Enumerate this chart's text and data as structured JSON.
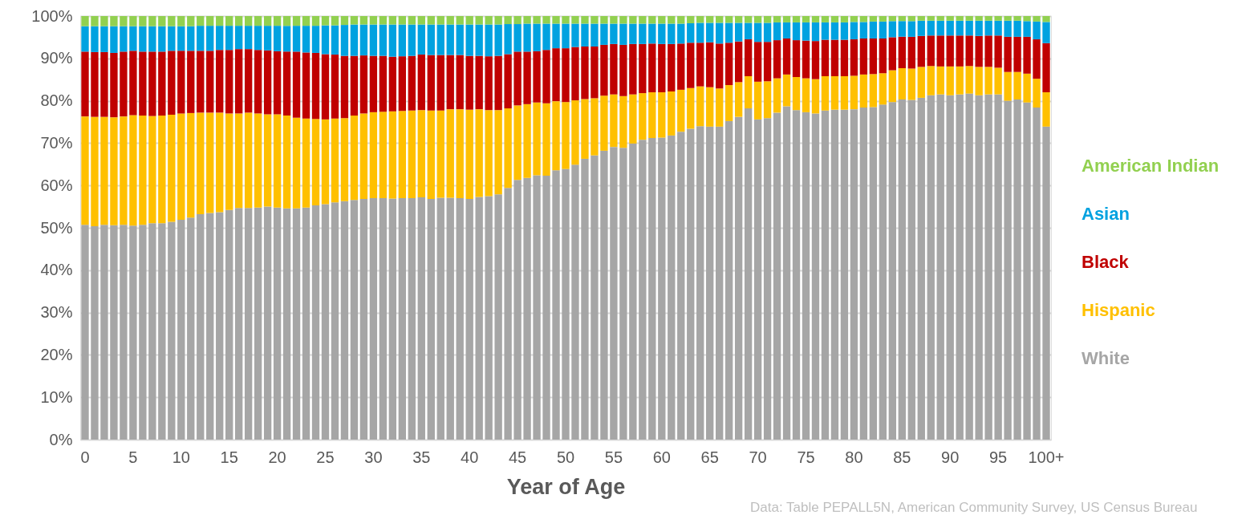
{
  "chart_data": {
    "type": "bar",
    "stacked": true,
    "xlabel": "Year of Age",
    "categories": [
      "0",
      null,
      null,
      null,
      null,
      "5",
      null,
      null,
      null,
      null,
      "10",
      null,
      null,
      null,
      null,
      "15",
      null,
      null,
      null,
      null,
      "20",
      null,
      null,
      null,
      null,
      "25",
      null,
      null,
      null,
      null,
      "30",
      null,
      null,
      null,
      null,
      "35",
      null,
      null,
      null,
      null,
      "40",
      null,
      null,
      null,
      null,
      "45",
      null,
      null,
      null,
      null,
      "50",
      null,
      null,
      null,
      null,
      "55",
      null,
      null,
      null,
      null,
      "60",
      null,
      null,
      null,
      null,
      "65",
      null,
      null,
      null,
      null,
      "70",
      null,
      null,
      null,
      null,
      "75",
      null,
      null,
      null,
      null,
      "80",
      null,
      null,
      null,
      null,
      "85",
      null,
      null,
      null,
      null,
      "90",
      null,
      null,
      null,
      null,
      "95",
      null,
      null,
      null,
      null,
      "100+"
    ],
    "series": [
      {
        "name": "White",
        "color": "#a6a6a6",
        "values": [
          50.7,
          50.4,
          50.7,
          50.6,
          50.7,
          50.5,
          50.7,
          51.1,
          51.1,
          51.4,
          51.9,
          52.4,
          53.2,
          53.5,
          53.7,
          54.2,
          54.7,
          54.7,
          54.8,
          55.0,
          54.8,
          54.6,
          54.6,
          54.8,
          55.3,
          55.6,
          56.0,
          56.3,
          56.6,
          56.8,
          57.0,
          57.0,
          56.9,
          57.0,
          57.0,
          57.2,
          56.8,
          57.1,
          57.1,
          57.0,
          56.8,
          57.3,
          57.5,
          57.9,
          59.4,
          61.3,
          61.8,
          62.4,
          62.3,
          63.6,
          63.9,
          64.9,
          66.3,
          67.1,
          68.2,
          69.1,
          68.9,
          69.9,
          70.8,
          71.2,
          71.3,
          71.8,
          72.7,
          73.4,
          74.0,
          73.9,
          73.9,
          75.2,
          76.2,
          78.2,
          75.6,
          75.9,
          77.2,
          78.7,
          77.8,
          77.3,
          77.0,
          77.7,
          77.9,
          77.9,
          78.0,
          78.4,
          78.5,
          79.1,
          79.7,
          80.3,
          80.2,
          80.7,
          81.3,
          81.5,
          81.3,
          81.5,
          81.7,
          81.3,
          81.5,
          81.5,
          80.0,
          80.3,
          79.6,
          78.4,
          73.9
        ]
      },
      {
        "name": "Hispanic",
        "color": "#ffc000",
        "values": [
          25.6,
          25.8,
          25.5,
          25.5,
          25.6,
          26.1,
          25.8,
          25.3,
          25.4,
          25.3,
          25.1,
          24.7,
          24.0,
          23.7,
          23.5,
          22.8,
          22.3,
          22.5,
          22.2,
          21.8,
          22.0,
          21.9,
          21.4,
          21.0,
          20.4,
          20.0,
          19.8,
          19.6,
          19.9,
          20.2,
          20.3,
          20.4,
          20.6,
          20.6,
          20.7,
          20.6,
          20.9,
          20.6,
          20.9,
          21.0,
          21.1,
          20.7,
          20.3,
          19.9,
          18.8,
          17.6,
          17.4,
          17.2,
          17.1,
          16.3,
          15.8,
          15.2,
          14.1,
          13.5,
          13.0,
          12.4,
          12.2,
          11.6,
          11.0,
          10.8,
          10.7,
          10.4,
          9.9,
          9.6,
          9.4,
          9.3,
          9.0,
          8.5,
          8.2,
          7.6,
          8.9,
          8.7,
          8.1,
          7.5,
          7.8,
          8.0,
          8.1,
          8.1,
          7.9,
          7.9,
          7.9,
          7.8,
          7.8,
          7.4,
          7.5,
          7.4,
          7.4,
          7.3,
          6.9,
          6.6,
          6.8,
          6.6,
          6.5,
          6.7,
          6.5,
          6.3,
          6.8,
          6.5,
          6.8,
          6.8,
          8.1
        ]
      },
      {
        "name": "Black",
        "color": "#c00000",
        "values": [
          15.3,
          15.3,
          15.3,
          15.2,
          15.3,
          15.2,
          15.1,
          15.2,
          15.1,
          15.1,
          14.8,
          14.7,
          14.6,
          14.6,
          14.8,
          15.0,
          15.2,
          15.0,
          15.0,
          15.1,
          14.9,
          15.1,
          15.6,
          15.6,
          15.6,
          15.4,
          15.1,
          14.7,
          14.1,
          13.7,
          13.3,
          13.2,
          12.9,
          12.9,
          12.9,
          13.1,
          13.1,
          13.1,
          12.8,
          12.8,
          12.7,
          12.6,
          12.7,
          12.8,
          12.8,
          12.7,
          12.4,
          12.1,
          12.6,
          12.5,
          12.7,
          12.6,
          12.4,
          12.2,
          12.0,
          11.9,
          12.1,
          11.9,
          11.6,
          11.5,
          11.4,
          11.2,
          10.9,
          10.7,
          10.3,
          10.6,
          10.6,
          10.0,
          9.6,
          8.7,
          9.4,
          9.3,
          9.0,
          8.5,
          8.7,
          8.9,
          9.0,
          8.6,
          8.6,
          8.6,
          8.6,
          8.5,
          8.4,
          8.2,
          7.8,
          7.4,
          7.5,
          7.3,
          7.2,
          7.3,
          7.3,
          7.3,
          7.2,
          7.3,
          7.4,
          7.6,
          8.3,
          8.3,
          8.7,
          9.3,
          11.6
        ]
      },
      {
        "name": "Asian",
        "color": "#00a2e0",
        "values": [
          6.0,
          6.1,
          6.1,
          6.3,
          6.0,
          5.8,
          6.0,
          6.0,
          6.0,
          5.8,
          5.8,
          5.8,
          5.9,
          5.9,
          5.7,
          5.7,
          5.5,
          5.5,
          5.7,
          5.8,
          6.0,
          6.1,
          6.1,
          6.3,
          6.4,
          6.8,
          6.9,
          7.3,
          7.4,
          7.3,
          7.4,
          7.4,
          7.6,
          7.5,
          7.4,
          7.1,
          7.2,
          7.2,
          7.2,
          7.2,
          7.4,
          7.4,
          7.5,
          7.4,
          7.1,
          6.5,
          6.6,
          6.5,
          6.2,
          5.8,
          5.8,
          5.5,
          5.4,
          5.4,
          5.0,
          4.8,
          5.0,
          4.8,
          4.8,
          4.7,
          4.8,
          4.8,
          4.7,
          4.6,
          4.7,
          4.6,
          4.9,
          4.7,
          4.4,
          3.9,
          4.5,
          4.5,
          4.2,
          3.8,
          4.2,
          4.3,
          4.4,
          4.1,
          4.1,
          4.1,
          4.1,
          3.9,
          4.0,
          4.0,
          3.8,
          3.7,
          3.7,
          3.6,
          3.5,
          3.5,
          3.5,
          3.5,
          3.5,
          3.6,
          3.5,
          3.5,
          3.8,
          3.8,
          3.7,
          4.2,
          5.0
        ]
      },
      {
        "name": "American Indian",
        "color": "#92d050",
        "values": [
          2.4,
          2.4,
          2.4,
          2.4,
          2.4,
          2.4,
          2.4,
          2.4,
          2.4,
          2.4,
          2.4,
          2.4,
          2.3,
          2.3,
          2.3,
          2.3,
          2.3,
          2.3,
          2.3,
          2.3,
          2.3,
          2.3,
          2.3,
          2.3,
          2.3,
          2.2,
          2.2,
          2.1,
          2.0,
          2.0,
          2.0,
          2.0,
          2.0,
          2.0,
          2.0,
          2.0,
          2.0,
          2.0,
          2.0,
          2.0,
          2.0,
          2.0,
          2.0,
          2.0,
          1.9,
          1.9,
          1.8,
          1.8,
          1.8,
          1.8,
          1.8,
          1.8,
          1.8,
          1.8,
          1.8,
          1.8,
          1.8,
          1.8,
          1.8,
          1.8,
          1.8,
          1.8,
          1.8,
          1.7,
          1.6,
          1.6,
          1.6,
          1.6,
          1.6,
          1.6,
          1.6,
          1.6,
          1.5,
          1.5,
          1.5,
          1.5,
          1.5,
          1.5,
          1.5,
          1.5,
          1.4,
          1.4,
          1.3,
          1.3,
          1.2,
          1.2,
          1.2,
          1.1,
          1.1,
          1.1,
          1.1,
          1.1,
          1.1,
          1.1,
          1.1,
          1.1,
          1.1,
          1.1,
          1.2,
          1.3,
          1.4
        ]
      }
    ],
    "ylim": [
      0,
      100
    ],
    "yticks": [
      {
        "value": 0,
        "label": "0%"
      },
      {
        "value": 10,
        "label": "10%"
      },
      {
        "value": 20,
        "label": "20%"
      },
      {
        "value": 30,
        "label": "30%"
      },
      {
        "value": 40,
        "label": "40%"
      },
      {
        "value": 50,
        "label": "50%"
      },
      {
        "value": 60,
        "label": "60%"
      },
      {
        "value": 70,
        "label": "70%"
      },
      {
        "value": 80,
        "label": "80%"
      },
      {
        "value": 90,
        "label": "90%"
      },
      {
        "value": 100,
        "label": "100%"
      }
    ],
    "grid": "y",
    "legend": "right",
    "annotations": [
      "Data: Table PEPALL5N, American Community Survey, US Census Bureau"
    ]
  }
}
